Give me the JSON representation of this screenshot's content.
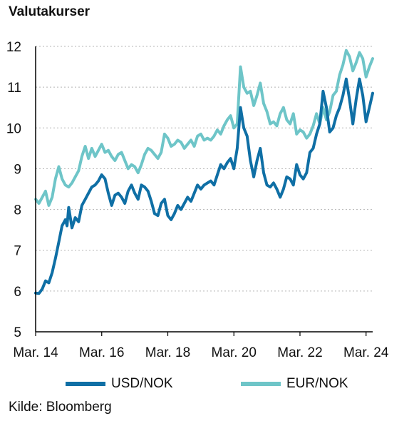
{
  "chart_data": {
    "type": "line",
    "title": "Valutakurser",
    "source": "Kilde: Bloomberg",
    "xlabel": "",
    "ylabel": "",
    "x_ticks": [
      "Mar. 14",
      "Mar. 16",
      "Mar. 18",
      "Mar. 20",
      "Mar. 22",
      "Mar. 24"
    ],
    "x_tick_years": [
      2014,
      2016,
      2018,
      2020,
      2022,
      2024
    ],
    "xlim": [
      2014,
      2024.2
    ],
    "ylim": [
      5,
      12
    ],
    "y_ticks": [
      5,
      6,
      7,
      8,
      9,
      10,
      11,
      12
    ],
    "grid": "horizontal dotted",
    "legend_position": "bottom",
    "series": [
      {
        "name": "USD/NOK",
        "color": "#0f6fa5",
        "points": [
          [
            2014.0,
            5.95
          ],
          [
            2014.1,
            5.94
          ],
          [
            2014.2,
            6.05
          ],
          [
            2014.3,
            6.25
          ],
          [
            2014.4,
            6.2
          ],
          [
            2014.5,
            6.45
          ],
          [
            2014.6,
            6.8
          ],
          [
            2014.7,
            7.2
          ],
          [
            2014.8,
            7.6
          ],
          [
            2014.9,
            7.75
          ],
          [
            2014.95,
            7.6
          ],
          [
            2015.0,
            8.05
          ],
          [
            2015.1,
            7.55
          ],
          [
            2015.2,
            7.8
          ],
          [
            2015.3,
            7.7
          ],
          [
            2015.4,
            8.1
          ],
          [
            2015.5,
            8.25
          ],
          [
            2015.6,
            8.4
          ],
          [
            2015.7,
            8.55
          ],
          [
            2015.8,
            8.6
          ],
          [
            2015.9,
            8.7
          ],
          [
            2016.0,
            8.85
          ],
          [
            2016.1,
            8.75
          ],
          [
            2016.2,
            8.4
          ],
          [
            2016.3,
            8.1
          ],
          [
            2016.4,
            8.35
          ],
          [
            2016.5,
            8.4
          ],
          [
            2016.6,
            8.3
          ],
          [
            2016.7,
            8.15
          ],
          [
            2016.8,
            8.45
          ],
          [
            2016.9,
            8.6
          ],
          [
            2017.0,
            8.4
          ],
          [
            2017.1,
            8.25
          ],
          [
            2017.2,
            8.6
          ],
          [
            2017.3,
            8.55
          ],
          [
            2017.4,
            8.45
          ],
          [
            2017.5,
            8.2
          ],
          [
            2017.6,
            7.9
          ],
          [
            2017.7,
            7.85
          ],
          [
            2017.8,
            8.15
          ],
          [
            2017.9,
            8.25
          ],
          [
            2018.0,
            7.85
          ],
          [
            2018.1,
            7.75
          ],
          [
            2018.2,
            7.9
          ],
          [
            2018.3,
            8.1
          ],
          [
            2018.4,
            8.0
          ],
          [
            2018.5,
            8.15
          ],
          [
            2018.6,
            8.3
          ],
          [
            2018.7,
            8.2
          ],
          [
            2018.8,
            8.4
          ],
          [
            2018.9,
            8.6
          ],
          [
            2019.0,
            8.5
          ],
          [
            2019.1,
            8.6
          ],
          [
            2019.2,
            8.65
          ],
          [
            2019.3,
            8.7
          ],
          [
            2019.4,
            8.6
          ],
          [
            2019.5,
            8.85
          ],
          [
            2019.6,
            9.1
          ],
          [
            2019.7,
            9.0
          ],
          [
            2019.8,
            9.15
          ],
          [
            2019.9,
            9.25
          ],
          [
            2020.0,
            9.0
          ],
          [
            2020.1,
            9.5
          ],
          [
            2020.2,
            10.5
          ],
          [
            2020.3,
            10.0
          ],
          [
            2020.4,
            9.8
          ],
          [
            2020.5,
            9.2
          ],
          [
            2020.6,
            8.8
          ],
          [
            2020.7,
            9.2
          ],
          [
            2020.8,
            9.5
          ],
          [
            2020.9,
            8.9
          ],
          [
            2021.0,
            8.6
          ],
          [
            2021.1,
            8.55
          ],
          [
            2021.2,
            8.65
          ],
          [
            2021.3,
            8.5
          ],
          [
            2021.4,
            8.3
          ],
          [
            2021.5,
            8.5
          ],
          [
            2021.6,
            8.8
          ],
          [
            2021.7,
            8.75
          ],
          [
            2021.8,
            8.6
          ],
          [
            2021.9,
            9.1
          ],
          [
            2022.0,
            8.85
          ],
          [
            2022.1,
            8.75
          ],
          [
            2022.2,
            8.9
          ],
          [
            2022.3,
            9.4
          ],
          [
            2022.4,
            9.5
          ],
          [
            2022.5,
            9.85
          ],
          [
            2022.6,
            10.1
          ],
          [
            2022.7,
            10.9
          ],
          [
            2022.8,
            10.5
          ],
          [
            2022.9,
            9.9
          ],
          [
            2023.0,
            10.0
          ],
          [
            2023.1,
            10.3
          ],
          [
            2023.2,
            10.5
          ],
          [
            2023.3,
            10.8
          ],
          [
            2023.4,
            11.2
          ],
          [
            2023.5,
            10.7
          ],
          [
            2023.6,
            10.1
          ],
          [
            2023.7,
            10.7
          ],
          [
            2023.8,
            11.2
          ],
          [
            2023.9,
            10.8
          ],
          [
            2024.0,
            10.15
          ],
          [
            2024.1,
            10.5
          ],
          [
            2024.2,
            10.85
          ]
        ]
      },
      {
        "name": "EUR/NOK",
        "color": "#6ec5c8",
        "points": [
          [
            2014.0,
            8.25
          ],
          [
            2014.1,
            8.15
          ],
          [
            2014.2,
            8.3
          ],
          [
            2014.3,
            8.45
          ],
          [
            2014.4,
            8.1
          ],
          [
            2014.5,
            8.3
          ],
          [
            2014.6,
            8.75
          ],
          [
            2014.7,
            9.05
          ],
          [
            2014.8,
            8.75
          ],
          [
            2014.9,
            8.6
          ],
          [
            2015.0,
            8.55
          ],
          [
            2015.1,
            8.65
          ],
          [
            2015.2,
            8.8
          ],
          [
            2015.3,
            8.95
          ],
          [
            2015.4,
            9.3
          ],
          [
            2015.5,
            9.55
          ],
          [
            2015.6,
            9.25
          ],
          [
            2015.7,
            9.5
          ],
          [
            2015.8,
            9.3
          ],
          [
            2015.9,
            9.45
          ],
          [
            2016.0,
            9.6
          ],
          [
            2016.1,
            9.4
          ],
          [
            2016.2,
            9.45
          ],
          [
            2016.3,
            9.3
          ],
          [
            2016.4,
            9.2
          ],
          [
            2016.5,
            9.35
          ],
          [
            2016.6,
            9.4
          ],
          [
            2016.7,
            9.2
          ],
          [
            2016.8,
            9.0
          ],
          [
            2016.9,
            9.1
          ],
          [
            2017.0,
            9.05
          ],
          [
            2017.1,
            8.9
          ],
          [
            2017.2,
            9.1
          ],
          [
            2017.3,
            9.35
          ],
          [
            2017.4,
            9.5
          ],
          [
            2017.5,
            9.45
          ],
          [
            2017.6,
            9.35
          ],
          [
            2017.7,
            9.25
          ],
          [
            2017.8,
            9.4
          ],
          [
            2017.9,
            9.85
          ],
          [
            2018.0,
            9.75
          ],
          [
            2018.1,
            9.55
          ],
          [
            2018.2,
            9.6
          ],
          [
            2018.3,
            9.7
          ],
          [
            2018.4,
            9.65
          ],
          [
            2018.5,
            9.5
          ],
          [
            2018.6,
            9.6
          ],
          [
            2018.7,
            9.7
          ],
          [
            2018.8,
            9.55
          ],
          [
            2018.9,
            9.8
          ],
          [
            2019.0,
            9.85
          ],
          [
            2019.1,
            9.7
          ],
          [
            2019.2,
            9.75
          ],
          [
            2019.3,
            9.7
          ],
          [
            2019.4,
            9.8
          ],
          [
            2019.5,
            9.95
          ],
          [
            2019.6,
            9.85
          ],
          [
            2019.7,
            10.05
          ],
          [
            2019.8,
            10.2
          ],
          [
            2019.9,
            10.3
          ],
          [
            2020.0,
            10.0
          ],
          [
            2020.1,
            10.1
          ],
          [
            2020.2,
            11.5
          ],
          [
            2020.3,
            11.0
          ],
          [
            2020.4,
            10.85
          ],
          [
            2020.5,
            10.9
          ],
          [
            2020.6,
            10.55
          ],
          [
            2020.7,
            10.8
          ],
          [
            2020.8,
            11.1
          ],
          [
            2020.9,
            10.6
          ],
          [
            2021.0,
            10.4
          ],
          [
            2021.1,
            10.1
          ],
          [
            2021.2,
            10.15
          ],
          [
            2021.3,
            10.05
          ],
          [
            2021.4,
            10.35
          ],
          [
            2021.5,
            10.5
          ],
          [
            2021.6,
            10.2
          ],
          [
            2021.7,
            10.1
          ],
          [
            2021.8,
            10.35
          ],
          [
            2021.9,
            9.85
          ],
          [
            2022.0,
            9.95
          ],
          [
            2022.1,
            9.9
          ],
          [
            2022.2,
            9.75
          ],
          [
            2022.3,
            9.85
          ],
          [
            2022.4,
            10.05
          ],
          [
            2022.5,
            10.35
          ],
          [
            2022.6,
            10.1
          ],
          [
            2022.7,
            10.5
          ],
          [
            2022.8,
            10.2
          ],
          [
            2022.9,
            10.4
          ],
          [
            2023.0,
            10.8
          ],
          [
            2023.1,
            10.9
          ],
          [
            2023.2,
            11.3
          ],
          [
            2023.3,
            11.55
          ],
          [
            2023.4,
            11.9
          ],
          [
            2023.5,
            11.75
          ],
          [
            2023.6,
            11.4
          ],
          [
            2023.7,
            11.6
          ],
          [
            2023.8,
            11.85
          ],
          [
            2023.9,
            11.7
          ],
          [
            2024.0,
            11.25
          ],
          [
            2024.1,
            11.5
          ],
          [
            2024.2,
            11.7
          ]
        ]
      }
    ]
  }
}
